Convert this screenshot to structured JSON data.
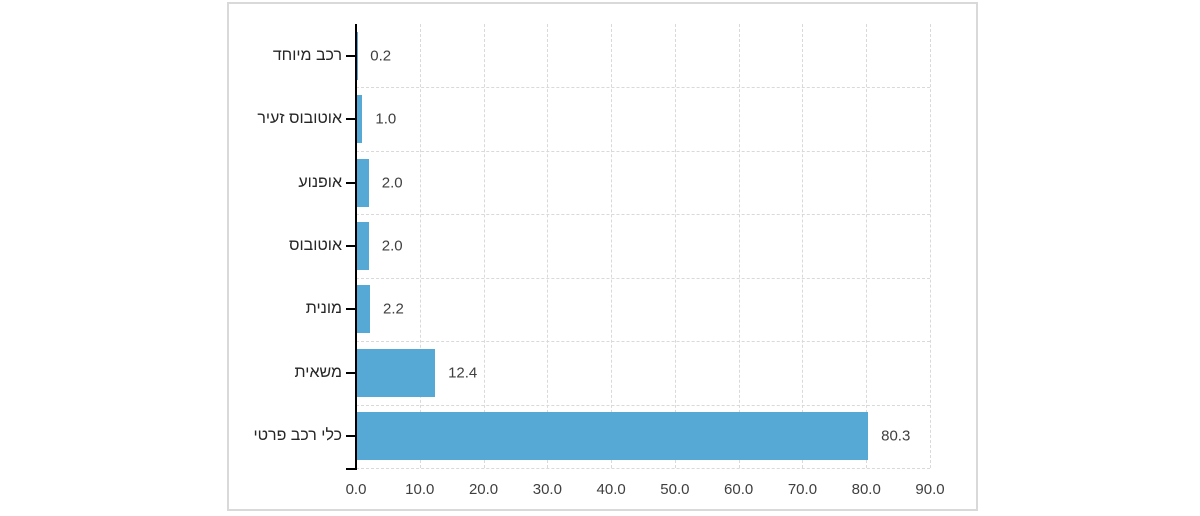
{
  "page": {
    "background_color": "#ffffff",
    "chart_border_color": "#d9d9d9"
  },
  "chart_data": {
    "type": "bar",
    "orientation": "horizontal",
    "title": "",
    "categories": [
      "רכב מיוחד",
      "אוטובוס זעיר",
      "אופנוע",
      "אוטובוס",
      "מונית",
      "משאית",
      "כלי רכב פרטי"
    ],
    "values": [
      0.2,
      1.0,
      2.0,
      2.0,
      2.2,
      12.4,
      80.3
    ],
    "value_labels": [
      "0.2",
      "1.0",
      "2.0",
      "2.0",
      "2.2",
      "12.4",
      "80.3"
    ],
    "x_tick_labels": [
      "0.0",
      "10.0",
      "20.0",
      "30.0",
      "40.0",
      "50.0",
      "60.0",
      "70.0",
      "80.0",
      "90.0"
    ],
    "xlim": [
      0,
      90
    ],
    "x_tick_step": 10,
    "grid": "dashed",
    "gridlines_vertical": true,
    "gridlines_horizontal": "between-categories",
    "legend": "none",
    "colors": {
      "bar": "#56a8d5",
      "gridline": "#d9d9d9",
      "axis": "#000000",
      "value_label": "#3f3f3f",
      "category_label": "#262626",
      "x_tick_label": "#3f3f3f"
    }
  }
}
